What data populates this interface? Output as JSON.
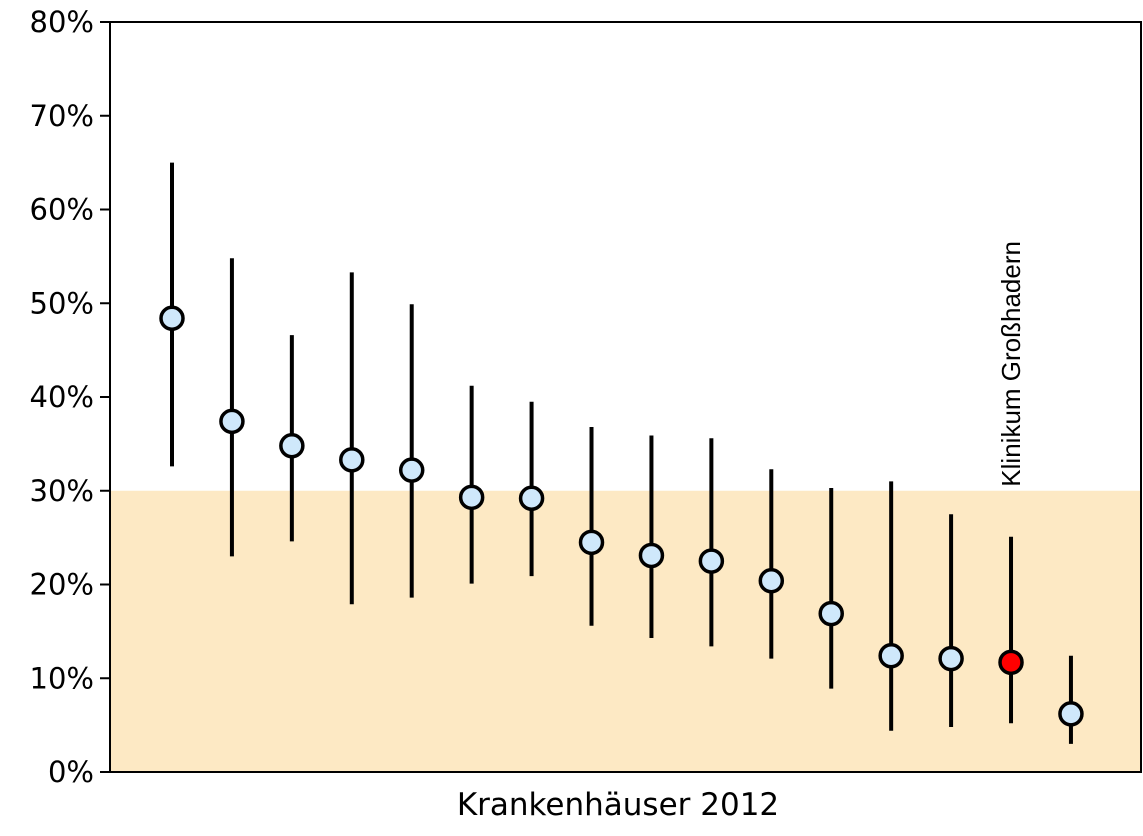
{
  "chart_data": {
    "type": "errorbar",
    "xlabel": "Krankenhäuser 2012",
    "categories": [
      null,
      null,
      null,
      null,
      null,
      null,
      null,
      null,
      null,
      null,
      null,
      null,
      null,
      null,
      null,
      null
    ],
    "values": [
      48.4,
      37.4,
      34.8,
      33.3,
      32.2,
      29.3,
      29.2,
      24.5,
      23.1,
      22.5,
      20.4,
      16.9,
      12.4,
      12.1,
      11.7,
      6.2
    ],
    "lower": [
      32.6,
      23.0,
      24.6,
      17.9,
      18.6,
      20.1,
      20.9,
      15.6,
      14.3,
      13.4,
      12.1,
      8.9,
      4.4,
      4.8,
      5.2,
      3.0
    ],
    "upper": [
      65.0,
      54.8,
      46.6,
      53.3,
      49.9,
      41.2,
      39.5,
      36.8,
      35.9,
      35.6,
      32.3,
      30.3,
      31.0,
      27.5,
      25.1,
      12.4
    ],
    "point_colors": [
      "#cfe8fb",
      "#cfe8fb",
      "#cfe8fb",
      "#cfe8fb",
      "#cfe8fb",
      "#cfe8fb",
      "#cfe8fb",
      "#cfe8fb",
      "#cfe8fb",
      "#cfe8fb",
      "#cfe8fb",
      "#cfe8fb",
      "#cfe8fb",
      "#cfe8fb",
      "#ff0000",
      "#cfe8fb"
    ],
    "annotation": {
      "text": "Klinikum Großhadern",
      "at": 14
    },
    "band": {
      "from": 0,
      "to": 30,
      "color": "#fde9c4"
    },
    "ylim": [
      0,
      80
    ],
    "yticks": [
      {
        "value": 0,
        "label": "0%"
      },
      {
        "value": 10,
        "label": "10%"
      },
      {
        "value": 20,
        "label": "20%"
      },
      {
        "value": 30,
        "label": "30%"
      },
      {
        "value": 40,
        "label": "40%"
      },
      {
        "value": 50,
        "label": "50%"
      },
      {
        "value": 60,
        "label": "60%"
      },
      {
        "value": 70,
        "label": "70%"
      },
      {
        "value": 80,
        "label": "80%"
      }
    ]
  }
}
